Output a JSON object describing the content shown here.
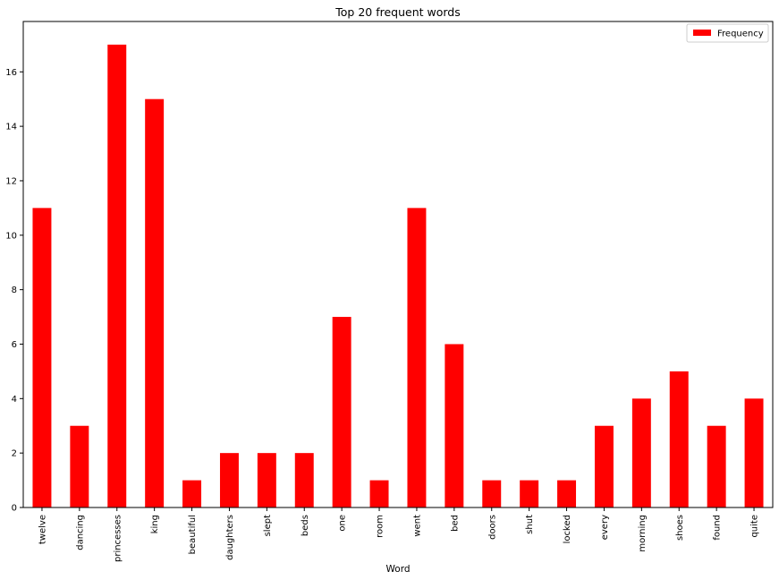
{
  "chart_data": {
    "type": "bar",
    "title": "Top 20 frequent words",
    "xlabel": "Word",
    "ylabel": "",
    "categories": [
      "twelve",
      "dancing",
      "princesses",
      "king",
      "beautiful",
      "daughters",
      "slept",
      "beds",
      "one",
      "room",
      "went",
      "bed",
      "doors",
      "shut",
      "locked",
      "every",
      "morning",
      "shoes",
      "found",
      "quite"
    ],
    "series": [
      {
        "name": "Frequency",
        "color": "#ff0000",
        "values": [
          11,
          3,
          17,
          15,
          1,
          2,
          2,
          2,
          7,
          1,
          11,
          6,
          1,
          1,
          1,
          3,
          4,
          5,
          3,
          4
        ]
      }
    ],
    "yticks": [
      0,
      2,
      4,
      6,
      8,
      10,
      12,
      14,
      16
    ],
    "ylim": [
      0,
      17.85
    ],
    "grid": false,
    "legend": "top-right"
  }
}
